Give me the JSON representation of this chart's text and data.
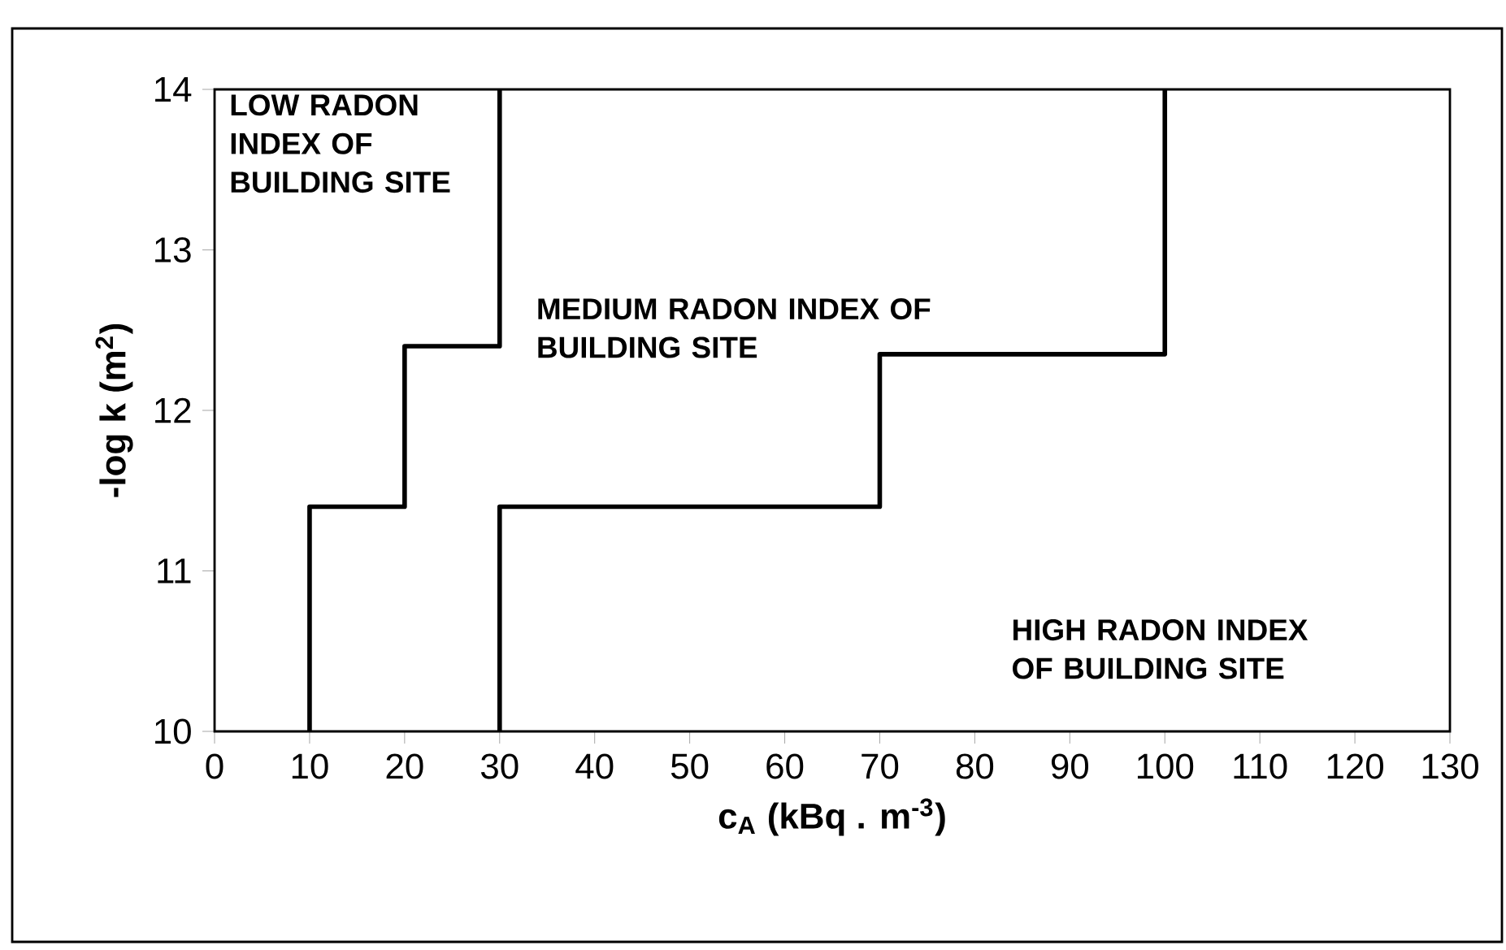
{
  "chart_data": {
    "type": "line",
    "xlabel": "c$_{A}$ (kBq . m$^{-3}$)",
    "ylabel": "-log  k (m$^{2}$)",
    "series": [
      {
        "color": "#000000",
        "x": [
          10,
          10,
          20,
          20,
          30,
          30
        ],
        "values": [
          10,
          11.4,
          11.4,
          12.4,
          12.4,
          14
        ]
      },
      {
        "color": "#000000",
        "x": [
          30,
          30,
          70,
          70,
          100,
          100
        ],
        "values": [
          10,
          11.4,
          11.4,
          12.35,
          12.35,
          14
        ]
      }
    ],
    "xlim": [
      0,
      130
    ],
    "xticks": [
      0,
      10,
      20,
      30,
      40,
      50,
      60,
      70,
      80,
      90,
      100,
      110,
      120,
      130
    ],
    "ylim": [
      10,
      14
    ],
    "yticks": [
      10,
      11,
      12,
      13,
      14
    ],
    "annotations": [
      "LOW RADON INDEX OF BUILDING SITE",
      "MEDIUM RADON INDEX OF BUILDING SITE",
      "HIGH RADON INDEX OF BUILDING SITE"
    ],
    "marker": "none",
    "line_style": "solid"
  }
}
